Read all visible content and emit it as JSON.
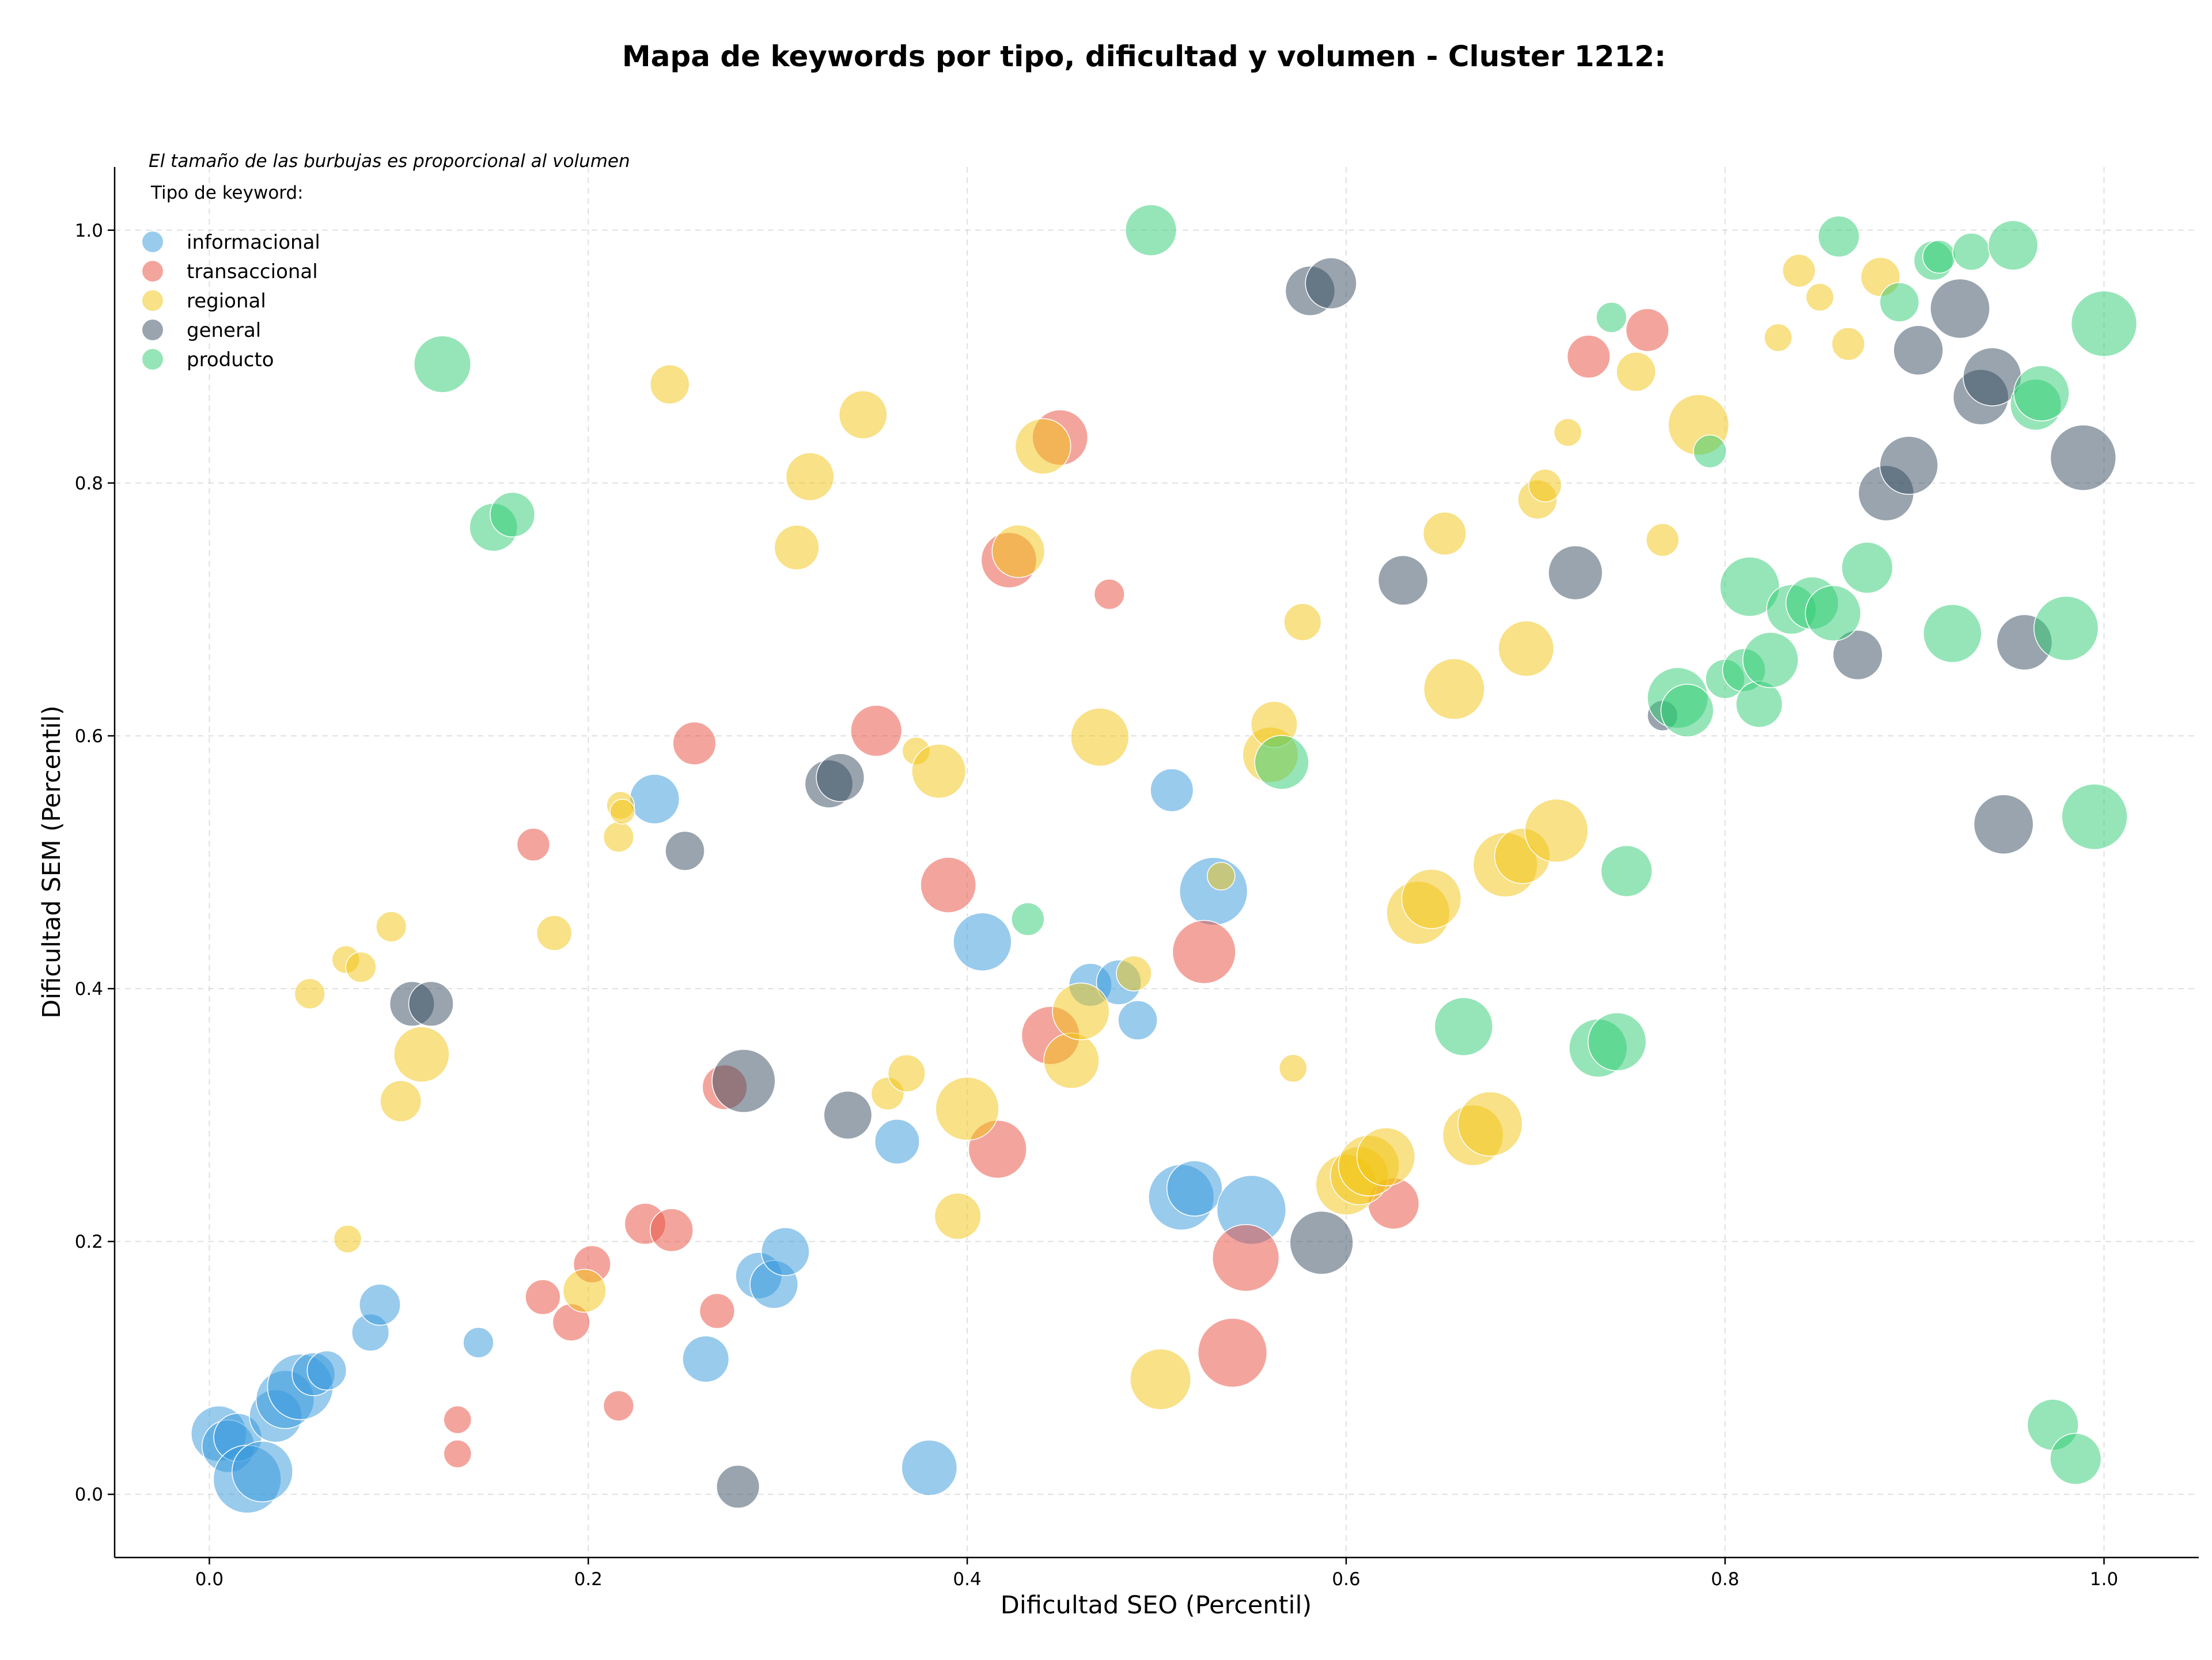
{
  "chart_data": {
    "type": "scatter",
    "title": "Mapa de keywords por tipo, dificultad y volumen - Cluster 1212:",
    "xlabel": "Dificultad SEO (Percentil)",
    "ylabel": "Dificultad SEM (Percentil)",
    "xlim": [
      -0.05,
      1.05
    ],
    "ylim": [
      -0.05,
      1.05
    ],
    "xticks": [
      "0.0",
      "0.2",
      "0.4",
      "0.6",
      "0.8",
      "1.0"
    ],
    "yticks": [
      "0.0",
      "0.2",
      "0.4",
      "0.6",
      "0.8",
      "1.0"
    ],
    "grid": true,
    "legend": {
      "placement": "top-left",
      "note": "El tamaño de las burbujas es proporcional al volumen",
      "title": "Tipo de keyword:"
    },
    "series": [
      {
        "name": "informacional",
        "color": "#3498db",
        "points": [
          {
            "x": 0.005,
            "y": 0.048,
            "s": 2.0
          },
          {
            "x": 0.01,
            "y": 0.038,
            "s": 1.8
          },
          {
            "x": 0.015,
            "y": 0.045,
            "s": 1.5
          },
          {
            "x": 0.02,
            "y": 0.012,
            "s": 3.0
          },
          {
            "x": 0.028,
            "y": 0.018,
            "s": 2.4
          },
          {
            "x": 0.035,
            "y": 0.062,
            "s": 1.8
          },
          {
            "x": 0.04,
            "y": 0.075,
            "s": 2.2
          },
          {
            "x": 0.048,
            "y": 0.085,
            "s": 2.8
          },
          {
            "x": 0.055,
            "y": 0.095,
            "s": 1.2
          },
          {
            "x": 0.062,
            "y": 0.098,
            "s": 1.0
          },
          {
            "x": 0.085,
            "y": 0.128,
            "s": 0.9
          },
          {
            "x": 0.09,
            "y": 0.15,
            "s": 1.1
          },
          {
            "x": 0.142,
            "y": 0.12,
            "s": 0.6
          },
          {
            "x": 0.235,
            "y": 0.55,
            "s": 1.6
          },
          {
            "x": 0.262,
            "y": 0.107,
            "s": 1.4
          },
          {
            "x": 0.29,
            "y": 0.173,
            "s": 1.4
          },
          {
            "x": 0.298,
            "y": 0.166,
            "s": 1.5
          },
          {
            "x": 0.304,
            "y": 0.192,
            "s": 1.5
          },
          {
            "x": 0.363,
            "y": 0.279,
            "s": 1.3
          },
          {
            "x": 0.38,
            "y": 0.021,
            "s": 2.0
          },
          {
            "x": 0.408,
            "y": 0.437,
            "s": 2.2
          },
          {
            "x": 0.465,
            "y": 0.403,
            "s": 1.2
          },
          {
            "x": 0.48,
            "y": 0.405,
            "s": 1.3
          },
          {
            "x": 0.49,
            "y": 0.375,
            "s": 1.0
          },
          {
            "x": 0.508,
            "y": 0.557,
            "s": 1.2
          },
          {
            "x": 0.513,
            "y": 0.235,
            "s": 2.8
          },
          {
            "x": 0.52,
            "y": 0.242,
            "s": 2.0
          },
          {
            "x": 0.53,
            "y": 0.477,
            "s": 3.0
          },
          {
            "x": 0.55,
            "y": 0.225,
            "s": 3.1
          }
        ]
      },
      {
        "name": "transaccional",
        "color": "#e74c3c",
        "points": [
          {
            "x": 0.131,
            "y": 0.059,
            "s": 0.5
          },
          {
            "x": 0.131,
            "y": 0.032,
            "s": 0.5
          },
          {
            "x": 0.171,
            "y": 0.514,
            "s": 0.7
          },
          {
            "x": 0.176,
            "y": 0.156,
            "s": 0.8
          },
          {
            "x": 0.191,
            "y": 0.136,
            "s": 0.9
          },
          {
            "x": 0.202,
            "y": 0.182,
            "s": 0.9
          },
          {
            "x": 0.216,
            "y": 0.07,
            "s": 0.6
          },
          {
            "x": 0.23,
            "y": 0.214,
            "s": 1.1
          },
          {
            "x": 0.244,
            "y": 0.209,
            "s": 1.2
          },
          {
            "x": 0.256,
            "y": 0.594,
            "s": 1.2
          },
          {
            "x": 0.268,
            "y": 0.145,
            "s": 0.8
          },
          {
            "x": 0.272,
            "y": 0.322,
            "s": 1.3
          },
          {
            "x": 0.352,
            "y": 0.604,
            "s": 1.7
          },
          {
            "x": 0.39,
            "y": 0.482,
            "s": 2.0
          },
          {
            "x": 0.416,
            "y": 0.273,
            "s": 2.2
          },
          {
            "x": 0.422,
            "y": 0.739,
            "s": 2.0
          },
          {
            "x": 0.444,
            "y": 0.363,
            "s": 2.2
          },
          {
            "x": 0.449,
            "y": 0.836,
            "s": 2.0
          },
          {
            "x": 0.475,
            "y": 0.712,
            "s": 0.6
          },
          {
            "x": 0.525,
            "y": 0.429,
            "s": 2.6
          },
          {
            "x": 0.54,
            "y": 0.112,
            "s": 3.1
          },
          {
            "x": 0.547,
            "y": 0.187,
            "s": 2.9
          },
          {
            "x": 0.625,
            "y": 0.23,
            "s": 1.7
          },
          {
            "x": 0.728,
            "y": 0.9,
            "s": 1.2
          },
          {
            "x": 0.759,
            "y": 0.921,
            "s": 1.2
          }
        ]
      },
      {
        "name": "regional",
        "color": "#f1c40f",
        "points": [
          {
            "x": 0.053,
            "y": 0.396,
            "s": 0.6
          },
          {
            "x": 0.072,
            "y": 0.423,
            "s": 0.5
          },
          {
            "x": 0.073,
            "y": 0.202,
            "s": 0.5
          },
          {
            "x": 0.08,
            "y": 0.417,
            "s": 0.6
          },
          {
            "x": 0.096,
            "y": 0.449,
            "s": 0.6
          },
          {
            "x": 0.101,
            "y": 0.311,
            "s": 1.1
          },
          {
            "x": 0.112,
            "y": 0.348,
            "s": 2.0
          },
          {
            "x": 0.182,
            "y": 0.444,
            "s": 0.8
          },
          {
            "x": 0.198,
            "y": 0.161,
            "s": 1.2
          },
          {
            "x": 0.216,
            "y": 0.52,
            "s": 0.6
          },
          {
            "x": 0.217,
            "y": 0.545,
            "s": 0.5
          },
          {
            "x": 0.218,
            "y": 0.54,
            "s": 0.4
          },
          {
            "x": 0.243,
            "y": 0.878,
            "s": 1.0
          },
          {
            "x": 0.31,
            "y": 0.749,
            "s": 1.3
          },
          {
            "x": 0.317,
            "y": 0.805,
            "s": 1.5
          },
          {
            "x": 0.345,
            "y": 0.854,
            "s": 1.5
          },
          {
            "x": 0.358,
            "y": 0.317,
            "s": 0.7
          },
          {
            "x": 0.368,
            "y": 0.333,
            "s": 0.9
          },
          {
            "x": 0.373,
            "y": 0.588,
            "s": 0.5
          },
          {
            "x": 0.385,
            "y": 0.572,
            "s": 1.9
          },
          {
            "x": 0.395,
            "y": 0.22,
            "s": 1.4
          },
          {
            "x": 0.4,
            "y": 0.305,
            "s": 2.6
          },
          {
            "x": 0.427,
            "y": 0.746,
            "s": 1.8
          },
          {
            "x": 0.44,
            "y": 0.829,
            "s": 2.0
          },
          {
            "x": 0.455,
            "y": 0.343,
            "s": 2.0
          },
          {
            "x": 0.46,
            "y": 0.382,
            "s": 2.1
          },
          {
            "x": 0.488,
            "y": 0.412,
            "s": 0.8
          },
          {
            "x": 0.47,
            "y": 0.599,
            "s": 2.2
          },
          {
            "x": 0.502,
            "y": 0.091,
            "s": 2.4
          },
          {
            "x": 0.534,
            "y": 0.489,
            "s": 0.5
          },
          {
            "x": 0.56,
            "y": 0.585,
            "s": 2.0
          },
          {
            "x": 0.562,
            "y": 0.609,
            "s": 1.4
          },
          {
            "x": 0.572,
            "y": 0.337,
            "s": 0.5
          },
          {
            "x": 0.577,
            "y": 0.69,
            "s": 0.9
          },
          {
            "x": 0.6,
            "y": 0.245,
            "s": 2.4
          },
          {
            "x": 0.607,
            "y": 0.252,
            "s": 2.2
          },
          {
            "x": 0.612,
            "y": 0.26,
            "s": 2.4
          },
          {
            "x": 0.621,
            "y": 0.267,
            "s": 2.2
          },
          {
            "x": 0.638,
            "y": 0.46,
            "s": 2.6
          },
          {
            "x": 0.645,
            "y": 0.471,
            "s": 2.3
          },
          {
            "x": 0.652,
            "y": 0.76,
            "s": 1.2
          },
          {
            "x": 0.657,
            "y": 0.637,
            "s": 2.4
          },
          {
            "x": 0.667,
            "y": 0.284,
            "s": 2.4
          },
          {
            "x": 0.676,
            "y": 0.293,
            "s": 2.7
          },
          {
            "x": 0.684,
            "y": 0.498,
            "s": 2.7
          },
          {
            "x": 0.693,
            "y": 0.505,
            "s": 2.0
          },
          {
            "x": 0.695,
            "y": 0.669,
            "s": 2.0
          },
          {
            "x": 0.701,
            "y": 0.787,
            "s": 1.0
          },
          {
            "x": 0.705,
            "y": 0.798,
            "s": 0.7
          },
          {
            "x": 0.711,
            "y": 0.525,
            "s": 2.6
          },
          {
            "x": 0.717,
            "y": 0.84,
            "s": 0.5
          },
          {
            "x": 0.753,
            "y": 0.888,
            "s": 1.0
          },
          {
            "x": 0.767,
            "y": 0.755,
            "s": 0.7
          },
          {
            "x": 0.786,
            "y": 0.846,
            "s": 2.4
          },
          {
            "x": 0.828,
            "y": 0.915,
            "s": 0.5
          },
          {
            "x": 0.839,
            "y": 0.968,
            "s": 0.7
          },
          {
            "x": 0.85,
            "y": 0.947,
            "s": 0.5
          },
          {
            "x": 0.865,
            "y": 0.91,
            "s": 0.7
          },
          {
            "x": 0.882,
            "y": 0.963,
            "s": 1.0
          }
        ]
      },
      {
        "name": "general",
        "color": "#34495e",
        "points": [
          {
            "x": 0.107,
            "y": 0.388,
            "s": 1.3
          },
          {
            "x": 0.117,
            "y": 0.388,
            "s": 1.3
          },
          {
            "x": 0.251,
            "y": 0.509,
            "s": 1.0
          },
          {
            "x": 0.279,
            "y": 0.006,
            "s": 1.2
          },
          {
            "x": 0.282,
            "y": 0.327,
            "s": 2.6
          },
          {
            "x": 0.327,
            "y": 0.562,
            "s": 1.5
          },
          {
            "x": 0.333,
            "y": 0.567,
            "s": 1.5
          },
          {
            "x": 0.337,
            "y": 0.3,
            "s": 1.5
          },
          {
            "x": 0.581,
            "y": 0.952,
            "s": 1.6
          },
          {
            "x": 0.592,
            "y": 0.958,
            "s": 1.7
          },
          {
            "x": 0.587,
            "y": 0.199,
            "s": 2.6
          },
          {
            "x": 0.63,
            "y": 0.723,
            "s": 1.6
          },
          {
            "x": 0.721,
            "y": 0.729,
            "s": 1.9
          },
          {
            "x": 0.767,
            "y": 0.616,
            "s": 0.6
          },
          {
            "x": 0.87,
            "y": 0.664,
            "s": 1.6
          },
          {
            "x": 0.885,
            "y": 0.792,
            "s": 2.0
          },
          {
            "x": 0.897,
            "y": 0.814,
            "s": 2.2
          },
          {
            "x": 0.902,
            "y": 0.905,
            "s": 1.6
          },
          {
            "x": 0.924,
            "y": 0.938,
            "s": 2.3
          },
          {
            "x": 0.935,
            "y": 0.868,
            "s": 2.0
          },
          {
            "x": 0.941,
            "y": 0.884,
            "s": 2.2
          },
          {
            "x": 0.947,
            "y": 0.53,
            "s": 2.3
          },
          {
            "x": 0.958,
            "y": 0.674,
            "s": 2.0
          },
          {
            "x": 0.989,
            "y": 0.82,
            "s": 2.8
          }
        ]
      },
      {
        "name": "producto",
        "color": "#2ecc71",
        "points": [
          {
            "x": 0.123,
            "y": 0.894,
            "s": 2.1
          },
          {
            "x": 0.15,
            "y": 0.765,
            "s": 1.5
          },
          {
            "x": 0.16,
            "y": 0.775,
            "s": 1.3
          },
          {
            "x": 0.432,
            "y": 0.455,
            "s": 0.7
          },
          {
            "x": 0.497,
            "y": 1.0,
            "s": 1.7
          },
          {
            "x": 0.566,
            "y": 0.579,
            "s": 1.9
          },
          {
            "x": 0.662,
            "y": 0.37,
            "s": 2.2
          },
          {
            "x": 0.733,
            "y": 0.353,
            "s": 2.2
          },
          {
            "x": 0.743,
            "y": 0.358,
            "s": 2.2
          },
          {
            "x": 0.74,
            "y": 0.931,
            "s": 0.6
          },
          {
            "x": 0.748,
            "y": 0.493,
            "s": 1.7
          },
          {
            "x": 0.775,
            "y": 0.63,
            "s": 2.4
          },
          {
            "x": 0.78,
            "y": 0.62,
            "s": 1.8
          },
          {
            "x": 0.792,
            "y": 0.825,
            "s": 0.7
          },
          {
            "x": 0.8,
            "y": 0.645,
            "s": 1.0
          },
          {
            "x": 0.81,
            "y": 0.652,
            "s": 1.2
          },
          {
            "x": 0.813,
            "y": 0.718,
            "s": 2.3
          },
          {
            "x": 0.818,
            "y": 0.625,
            "s": 1.4
          },
          {
            "x": 0.824,
            "y": 0.66,
            "s": 2.0
          },
          {
            "x": 0.835,
            "y": 0.7,
            "s": 1.6
          },
          {
            "x": 0.846,
            "y": 0.705,
            "s": 1.8
          },
          {
            "x": 0.857,
            "y": 0.697,
            "s": 2.0
          },
          {
            "x": 0.86,
            "y": 0.995,
            "s": 1.1
          },
          {
            "x": 0.875,
            "y": 0.733,
            "s": 1.7
          },
          {
            "x": 0.892,
            "y": 0.943,
            "s": 1.0
          },
          {
            "x": 0.91,
            "y": 0.976,
            "s": 1.0
          },
          {
            "x": 0.913,
            "y": 0.979,
            "s": 0.7
          },
          {
            "x": 0.92,
            "y": 0.681,
            "s": 2.2
          },
          {
            "x": 0.93,
            "y": 0.983,
            "s": 0.9
          },
          {
            "x": 0.952,
            "y": 0.988,
            "s": 1.6
          },
          {
            "x": 0.964,
            "y": 0.862,
            "s": 1.7
          },
          {
            "x": 0.967,
            "y": 0.871,
            "s": 2.0
          },
          {
            "x": 0.973,
            "y": 0.055,
            "s": 1.7
          },
          {
            "x": 0.98,
            "y": 0.685,
            "s": 2.7
          },
          {
            "x": 0.985,
            "y": 0.028,
            "s": 1.7
          },
          {
            "x": 0.995,
            "y": 0.536,
            "s": 2.8
          },
          {
            "x": 1.0,
            "y": 0.926,
            "s": 2.8
          }
        ]
      }
    ]
  }
}
